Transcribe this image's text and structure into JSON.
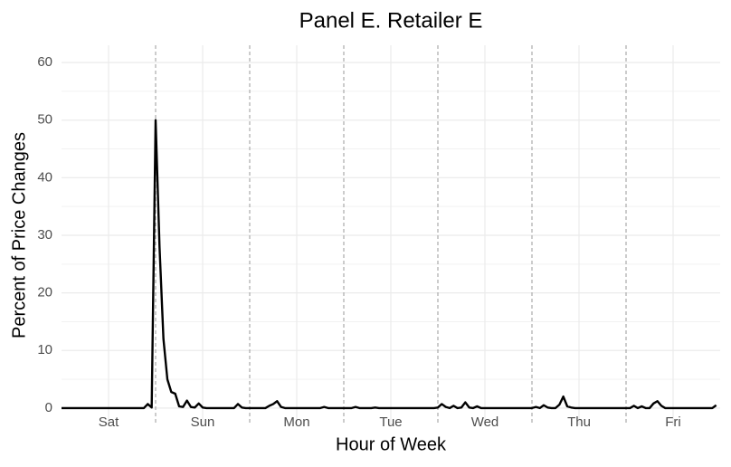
{
  "chart_data": {
    "type": "line",
    "title": "Panel E. Retailer E",
    "x_label": "Hour of Week",
    "y_label": "Percent of Price Changes",
    "xlim": [
      0,
      168
    ],
    "ylim": [
      -3,
      63
    ],
    "xticks": [
      {
        "value": 12,
        "label": "Sat"
      },
      {
        "value": 36,
        "label": "Sun"
      },
      {
        "value": 60,
        "label": "Mon"
      },
      {
        "value": 84,
        "label": "Tue"
      },
      {
        "value": 108,
        "label": "Wed"
      },
      {
        "value": 132,
        "label": "Thu"
      },
      {
        "value": 156,
        "label": "Fri"
      }
    ],
    "yticks": [
      0,
      10,
      20,
      30,
      40,
      50,
      60
    ],
    "vlines": [
      24,
      48,
      72,
      96,
      120,
      144
    ],
    "grid": true,
    "series": [
      {
        "color": "#000000",
        "x": [
          0,
          1,
          2,
          3,
          4,
          5,
          6,
          7,
          8,
          9,
          10,
          11,
          12,
          13,
          14,
          15,
          16,
          17,
          18,
          19,
          20,
          21,
          22,
          23,
          24,
          25,
          26,
          27,
          28,
          29,
          30,
          31,
          32,
          33,
          34,
          35,
          36,
          37,
          38,
          39,
          40,
          41,
          42,
          43,
          44,
          45,
          46,
          47,
          48,
          49,
          50,
          51,
          52,
          53,
          54,
          55,
          56,
          57,
          58,
          59,
          60,
          61,
          62,
          63,
          64,
          65,
          66,
          67,
          68,
          69,
          70,
          71,
          72,
          73,
          74,
          75,
          76,
          77,
          78,
          79,
          80,
          81,
          82,
          83,
          84,
          85,
          86,
          87,
          88,
          89,
          90,
          91,
          92,
          93,
          94,
          95,
          96,
          97,
          98,
          99,
          100,
          101,
          102,
          103,
          104,
          105,
          106,
          107,
          108,
          109,
          110,
          111,
          112,
          113,
          114,
          115,
          116,
          117,
          118,
          119,
          120,
          121,
          122,
          123,
          124,
          125,
          126,
          127,
          128,
          129,
          130,
          131,
          132,
          133,
          134,
          135,
          136,
          137,
          138,
          139,
          140,
          141,
          142,
          143,
          144,
          145,
          146,
          147,
          148,
          149,
          150,
          151,
          152,
          153,
          154,
          155,
          156,
          157,
          158,
          159,
          160,
          161,
          162,
          163,
          164,
          165,
          166,
          167
        ],
        "values": [
          0,
          0,
          0,
          0,
          0,
          0,
          0,
          0,
          0,
          0,
          0,
          0,
          0,
          0,
          0,
          0,
          0,
          0,
          0,
          0,
          0,
          0,
          0.7,
          0.1,
          50,
          28,
          12,
          5,
          2.8,
          2.5,
          0.3,
          0.2,
          1.3,
          0.2,
          0.1,
          0.8,
          0.1,
          0,
          0,
          0,
          0,
          0,
          0,
          0,
          0,
          0.7,
          0.1,
          0,
          0,
          0,
          0,
          0,
          0,
          0.4,
          0.7,
          1.2,
          0.2,
          0,
          0,
          0,
          0,
          0,
          0,
          0,
          0,
          0,
          0,
          0.2,
          0,
          0,
          0,
          0,
          0,
          0,
          0,
          0.2,
          0,
          0,
          0,
          0,
          0.1,
          0,
          0,
          0,
          0,
          0,
          0,
          0,
          0,
          0,
          0,
          0,
          0,
          0,
          0,
          0,
          0.1,
          0.7,
          0.2,
          0,
          0.4,
          0,
          0.1,
          1.0,
          0.1,
          0,
          0.3,
          0,
          0,
          0,
          0,
          0,
          0,
          0,
          0,
          0,
          0,
          0,
          0,
          0,
          0,
          0.2,
          0,
          0.5,
          0.1,
          0,
          0,
          0.6,
          2.0,
          0.3,
          0.1,
          0,
          0,
          0,
          0,
          0,
          0,
          0,
          0,
          0,
          0,
          0,
          0,
          0,
          0,
          0,
          0.4,
          0,
          0.3,
          0,
          0,
          0.8,
          1.2,
          0.4,
          0,
          0,
          0,
          0,
          0,
          0,
          0,
          0,
          0,
          0,
          0,
          0,
          0,
          0.5
        ]
      }
    ]
  }
}
